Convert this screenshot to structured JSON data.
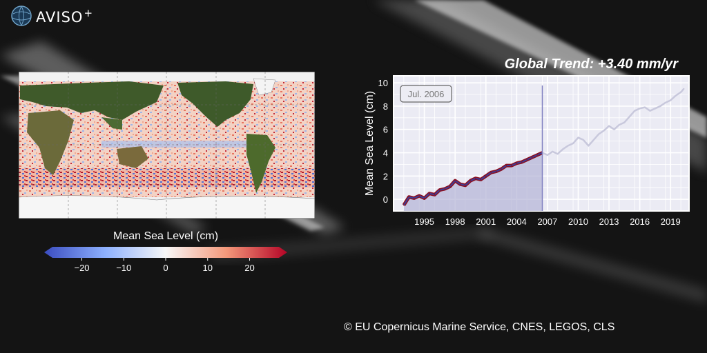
{
  "logo": {
    "text": "AVISO",
    "sup": "+"
  },
  "trend_label": "Global Trend: +3.40 mm/yr",
  "map": {
    "colorbar_title": "Mean Sea Level (cm)",
    "colorbar_ticks": [
      -20,
      -10,
      0,
      10,
      20
    ],
    "vmin": -27,
    "vmax": 27,
    "cmap": [
      "#3a4cc0",
      "#f7f7f7",
      "#b40426"
    ]
  },
  "credit": "© EU Copernicus Marine Service, CNES, LEGOS, CLS",
  "chart_data": {
    "type": "line",
    "title": "",
    "xlabel": "",
    "ylabel": "Mean Sea Level (cm)",
    "xlim": [
      1992.0,
      2020.8
    ],
    "ylim": [
      -1.0,
      10.6
    ],
    "xticks": [
      1995,
      1998,
      2001,
      2004,
      2007,
      2010,
      2013,
      2016,
      2019
    ],
    "yticks": [
      0,
      2,
      4,
      6,
      8,
      10
    ],
    "grid": true,
    "current_date_label": "Jul. 2006",
    "current_x": 2006.5,
    "series": [
      {
        "name": "",
        "x": [
          1993.0,
          1993.5,
          1994.0,
          1994.5,
          1995.0,
          1995.5,
          1996.0,
          1996.5,
          1997.0,
          1997.5,
          1998.0,
          1998.5,
          1999.0,
          1999.5,
          2000.0,
          2000.5,
          2001.0,
          2001.5,
          2002.0,
          2002.5,
          2003.0,
          2003.5,
          2004.0,
          2004.5,
          2005.0,
          2005.5,
          2006.0,
          2006.5
        ],
        "y": [
          -0.5,
          0.2,
          0.1,
          0.3,
          0.1,
          0.5,
          0.4,
          0.8,
          0.9,
          1.1,
          1.6,
          1.3,
          1.2,
          1.6,
          1.8,
          1.7,
          2.0,
          2.3,
          2.4,
          2.6,
          2.9,
          2.9,
          3.1,
          3.2,
          3.4,
          3.6,
          3.8,
          4.0
        ],
        "color": "#8b0f1f",
        "fill": true
      },
      {
        "name": "",
        "x": [
          2006.5,
          2007.0,
          2007.5,
          2008.0,
          2008.5,
          2009.0,
          2009.5,
          2010.0,
          2010.5,
          2011.0,
          2011.5,
          2012.0,
          2012.5,
          2013.0,
          2013.5,
          2014.0,
          2014.5,
          2015.0,
          2015.5,
          2016.0,
          2016.5,
          2017.0,
          2017.5,
          2018.0,
          2018.5,
          2019.0,
          2019.5,
          2020.0,
          2020.3
        ],
        "y": [
          4.0,
          3.8,
          4.1,
          3.9,
          4.3,
          4.6,
          4.8,
          5.3,
          5.1,
          4.6,
          5.1,
          5.6,
          5.9,
          6.3,
          6.0,
          6.4,
          6.6,
          7.1,
          7.6,
          7.8,
          7.9,
          7.6,
          7.8,
          8.0,
          8.3,
          8.5,
          8.9,
          9.2,
          9.5
        ],
        "color": "#c8c8dc",
        "fill": false
      }
    ]
  }
}
